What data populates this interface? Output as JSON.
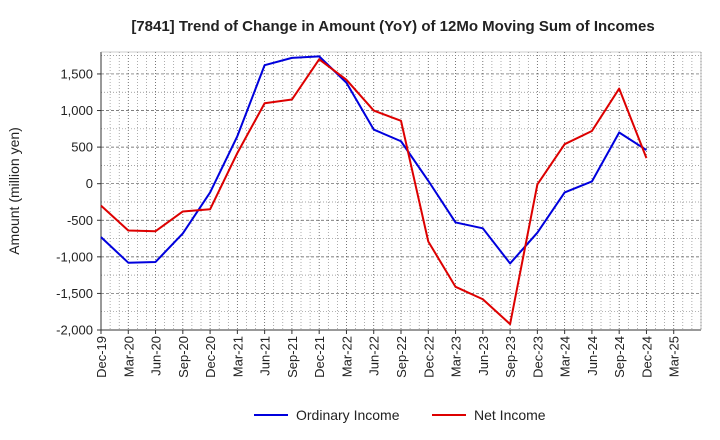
{
  "chart_data": {
    "type": "line",
    "title": "[7841]  Trend of Change in Amount (YoY) of 12Mo Moving Sum of Incomes",
    "xlabel": "",
    "ylabel": "Amount (million yen)",
    "ylim": [
      -2000,
      1800
    ],
    "yticks": [
      -2000,
      -1500,
      -1000,
      -500,
      0,
      500,
      1000,
      1500
    ],
    "ytick_labels": [
      "-2,000",
      "-1,500",
      "-1,000",
      "-500",
      "0",
      "500",
      "1,000",
      "1,500"
    ],
    "categories": [
      "Dec-19",
      "Mar-20",
      "Jun-20",
      "Sep-20",
      "Dec-20",
      "Mar-21",
      "Jun-21",
      "Sep-21",
      "Dec-21",
      "Mar-22",
      "Jun-22",
      "Sep-22",
      "Dec-22",
      "Mar-23",
      "Jun-23",
      "Sep-23",
      "Dec-23",
      "Mar-24",
      "Jun-24",
      "Sep-24",
      "Dec-24",
      "Mar-25"
    ],
    "grid": true,
    "legend": "bottom-center",
    "series": [
      {
        "name": "Ordinary Income",
        "color": "#0000dd",
        "values": [
          -730,
          -1080,
          -1070,
          -680,
          -120,
          650,
          1620,
          1720,
          1740,
          1380,
          740,
          580,
          40,
          -530,
          -610,
          -1090,
          -670,
          -120,
          30,
          700,
          460,
          null
        ]
      },
      {
        "name": "Net Income",
        "color": "#dd0000",
        "values": [
          -300,
          -640,
          -650,
          -380,
          -350,
          420,
          1100,
          1150,
          1700,
          1420,
          1000,
          860,
          -790,
          -1410,
          -1580,
          -1920,
          -10,
          540,
          720,
          1300,
          350,
          null
        ]
      }
    ]
  }
}
